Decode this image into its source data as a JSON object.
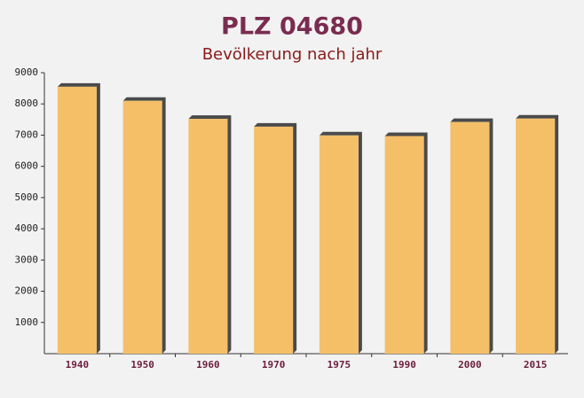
{
  "chart_data": {
    "type": "bar",
    "title": "PLZ 04680",
    "subtitle": "Bevölkerung nach jahr",
    "categories": [
      "1940",
      "1950",
      "1960",
      "1970",
      "1975",
      "1990",
      "2000",
      "2015"
    ],
    "values": [
      8550,
      8100,
      7520,
      7270,
      6990,
      6970,
      7420,
      7530
    ],
    "color": "#f5bf68",
    "ylim": [
      0,
      9000
    ],
    "yticks": [
      1000,
      2000,
      3000,
      4000,
      5000,
      6000,
      7000,
      8000,
      9000
    ]
  }
}
